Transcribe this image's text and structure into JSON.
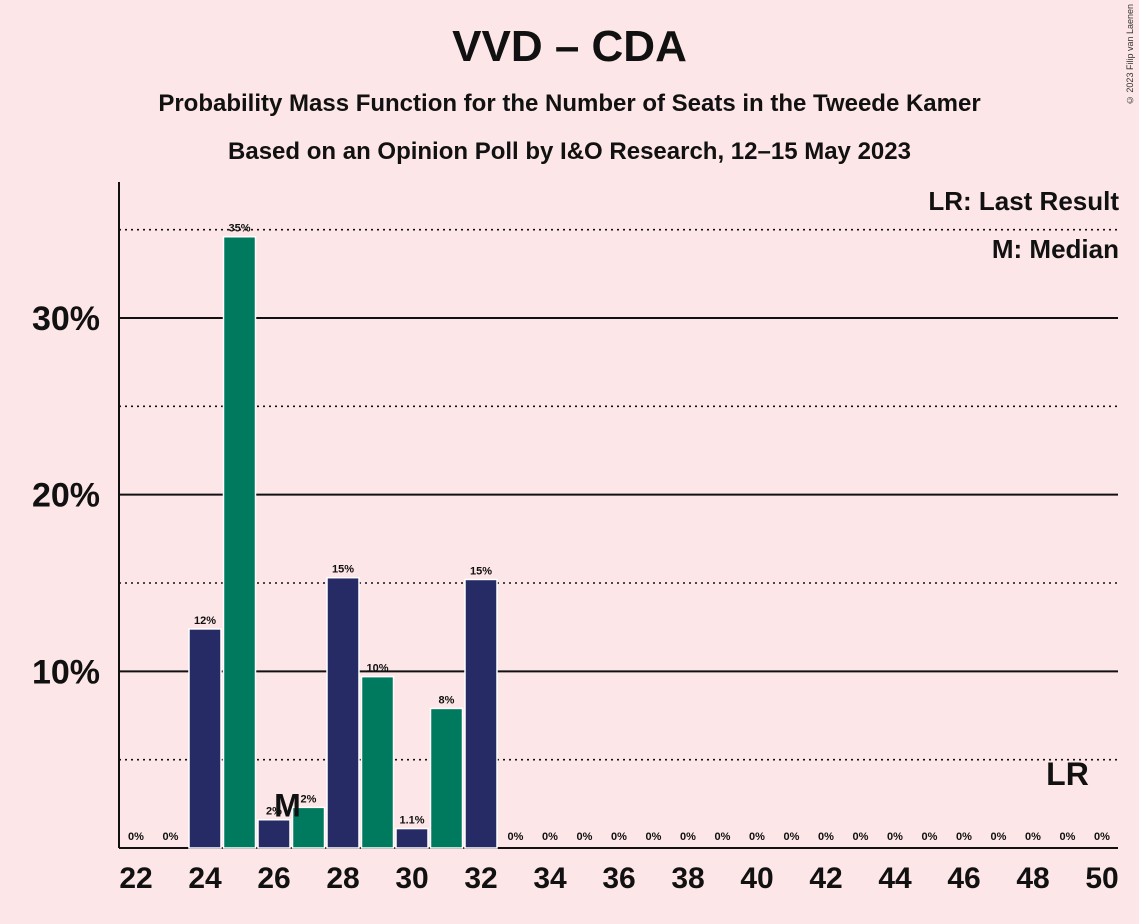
{
  "chart_data": {
    "type": "bar",
    "title": "VVD – CDA",
    "subtitle": "Probability Mass Function for the Number of Seats in the Tweede Kamer",
    "subtitle2": "Based on an Opinion Poll by I&O Research, 12–15 May 2023",
    "copyright": "© 2023 Filip van Laenen",
    "legend": [
      "LR: Last Result",
      "M: Median"
    ],
    "x": [
      22,
      23,
      24,
      25,
      26,
      27,
      28,
      29,
      30,
      31,
      32,
      33,
      34,
      35,
      36,
      37,
      38,
      39,
      40,
      41,
      42,
      43,
      44,
      45,
      46,
      47,
      48,
      49,
      50
    ],
    "values": [
      0,
      0,
      12.4,
      34.6,
      1.6,
      2.3,
      15.3,
      9.7,
      1.1,
      7.9,
      15.2,
      0,
      0,
      0,
      0,
      0,
      0,
      0,
      0,
      0,
      0,
      0,
      0,
      0,
      0,
      0,
      0,
      0,
      0
    ],
    "labels": [
      "0%",
      "0%",
      "12%",
      "35%",
      "2%",
      "2%",
      "15%",
      "10%",
      "1.1%",
      "8%",
      "15%",
      "0%",
      "0%",
      "0%",
      "0%",
      "0%",
      "0%",
      "0%",
      "0%",
      "0%",
      "0%",
      "0%",
      "0%",
      "0%",
      "0%",
      "0%",
      "0%",
      "0%",
      "0%"
    ],
    "x_ticks": [
      22,
      24,
      26,
      28,
      30,
      32,
      34,
      36,
      38,
      40,
      42,
      44,
      46,
      48,
      50
    ],
    "y_ticks": [
      10,
      20,
      30
    ],
    "y_tick_labels": [
      "10%",
      "20%",
      "30%"
    ],
    "ylim": [
      0,
      37.5
    ],
    "median_seat": 27,
    "median_label": "M",
    "last_result_seat": 49,
    "last_result_label": "LR",
    "colors": {
      "navy": "#262b66",
      "green": "#007a5e",
      "background": "#fde6e7"
    },
    "grid": "solid at 10% steps, dotted at 5% steps"
  }
}
